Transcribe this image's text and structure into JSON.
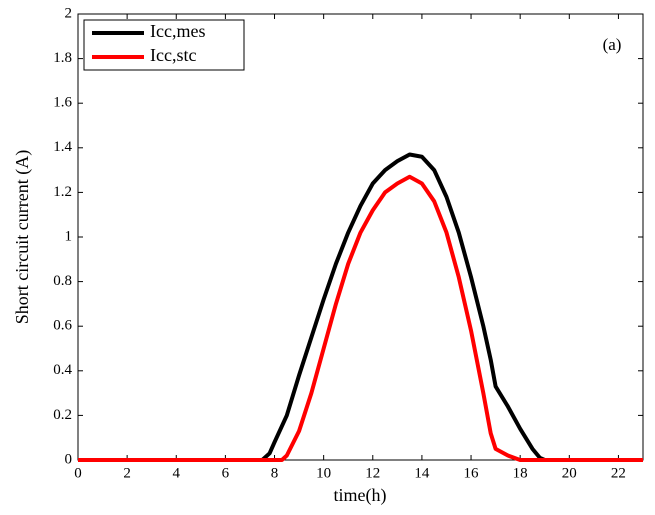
{
  "chart_data": {
    "type": "line",
    "xlabel": "time(h)",
    "ylabel": "Short circuit current (A)",
    "annotation": "(a)",
    "xlim": [
      0,
      23
    ],
    "ylim": [
      0,
      2
    ],
    "xticks": [
      0,
      2,
      4,
      6,
      8,
      10,
      12,
      14,
      16,
      18,
      20,
      22
    ],
    "yticks": [
      0,
      0.2,
      0.4,
      0.6,
      0.8,
      1,
      1.2,
      1.4,
      1.6,
      1.8,
      2
    ],
    "grid": false,
    "legend": "upper left",
    "series": [
      {
        "name": "Icc,mes",
        "color": "#000000",
        "x": [
          0,
          7.5,
          7.8,
          8,
          8.5,
          9,
          9.5,
          10,
          10.5,
          11,
          11.5,
          12,
          12.5,
          13,
          13.5,
          14,
          14.5,
          15,
          15.5,
          16,
          16.5,
          16.8,
          17,
          17.5,
          18,
          18.5,
          18.8,
          19,
          23
        ],
        "values": [
          0,
          0,
          0.03,
          0.08,
          0.2,
          0.38,
          0.55,
          0.72,
          0.88,
          1.02,
          1.14,
          1.24,
          1.3,
          1.34,
          1.37,
          1.36,
          1.3,
          1.18,
          1.02,
          0.82,
          0.6,
          0.45,
          0.33,
          0.24,
          0.14,
          0.05,
          0.01,
          0,
          0
        ]
      },
      {
        "name": "Icc,stc",
        "color": "#ff0000",
        "x": [
          0,
          8.3,
          8.5,
          9,
          9.5,
          10,
          10.5,
          11,
          11.5,
          12,
          12.5,
          13,
          13.5,
          14,
          14.5,
          15,
          15.5,
          16,
          16.5,
          16.8,
          17,
          17.5,
          18,
          23
        ],
        "values": [
          0,
          0,
          0.02,
          0.13,
          0.3,
          0.5,
          0.7,
          0.88,
          1.02,
          1.12,
          1.2,
          1.24,
          1.27,
          1.24,
          1.16,
          1.02,
          0.82,
          0.58,
          0.3,
          0.12,
          0.05,
          0.02,
          0,
          0
        ]
      }
    ]
  }
}
